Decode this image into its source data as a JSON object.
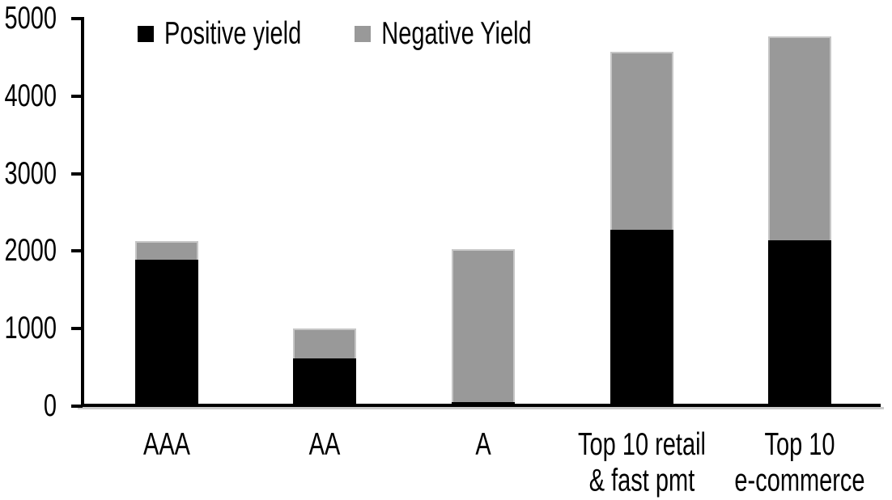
{
  "chart_data": {
    "type": "bar",
    "stacked": true,
    "title": "",
    "xlabel": "",
    "ylabel": "",
    "categories": [
      "AAA",
      "AA",
      "A",
      "Top 10 retail\n& fast pmt",
      "Top 10\ne-commerce"
    ],
    "series": [
      {
        "name": "Positive yield",
        "color": "#000000",
        "values": [
          1890,
          620,
          50,
          2280,
          2145
        ]
      },
      {
        "name": "Negative Yield",
        "color": "#999999",
        "values": [
          235,
          380,
          1980,
          2290,
          2625
        ]
      }
    ],
    "totals": [
      2125,
      1000,
      2030,
      4570,
      4770
    ],
    "ylim": [
      0,
      5000
    ],
    "yticks": [
      0,
      1000,
      2000,
      3000,
      4000,
      5000
    ],
    "grid": false,
    "legend_position": "top"
  },
  "colors": {
    "background": "#ffffff",
    "axis": "#000000",
    "axis_shadow": "#cccccc",
    "bar_outline": "#c6c6c6"
  }
}
